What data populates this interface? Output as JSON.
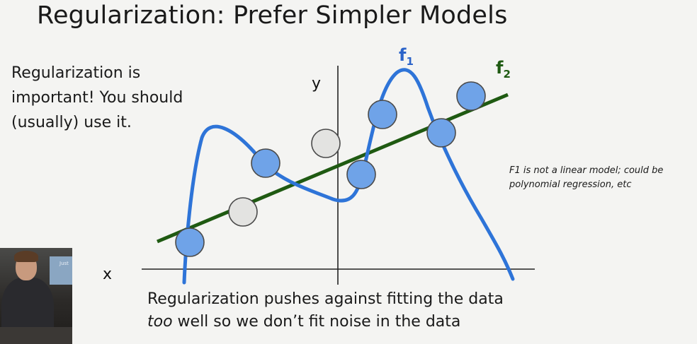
{
  "slide": {
    "title": "Regularization: Prefer Simpler Models",
    "left_note": "Regularization is important! You should (usually) use it.",
    "side_note": "F1 is not a linear model; could be polynomial regression, etc",
    "bottom_note_em": "too",
    "bottom_note_line1": "Regularization pushes against fitting the data",
    "bottom_note_line2_rest": " well so we don’t fit noise in the data"
  },
  "diagram": {
    "x_axis_label": "x",
    "y_axis_label": "y",
    "f1_label": "f",
    "f1_subscript": "1",
    "f2_label": "f",
    "f2_subscript": "2",
    "colors": {
      "f1_curve": "#2e74d8",
      "f1_label": "#2b63c9",
      "f2_line": "#1f5a12",
      "f2_label": "#1f5a12",
      "fitted_point": "#6fa3e8",
      "outlier_point": "#e3e3e1",
      "point_stroke": "#4a4a4a",
      "axis": "#222222"
    },
    "point_types": [
      "fitted",
      "fitted",
      "fitted",
      "fitted",
      "fitted",
      "fitted",
      "outlier",
      "outlier",
      "outlier"
    ]
  },
  "webcam": {
    "screen_text": "Just"
  }
}
